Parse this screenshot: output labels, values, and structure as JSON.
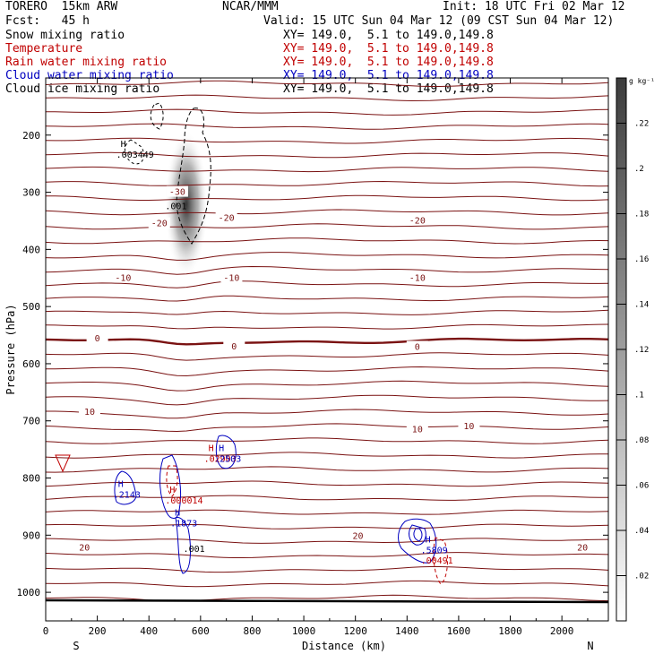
{
  "header": {
    "model": "TORERO  15km ARW",
    "org": "NCAR/MMM",
    "init": "Init: 18 UTC Fri 02 Mar 12",
    "fcst": "Fcst:   45 h",
    "valid": "Valid: 15 UTC Sun 04 Mar 12 (09 CST Sun 04 Mar 12)"
  },
  "fields": [
    {
      "name": "Snow mixing ratio",
      "xy": "XY= 149.0,  5.1 to 149.0,149.8",
      "color": "#000000"
    },
    {
      "name": "Temperature",
      "xy": "XY= 149.0,  5.1 to 149.0,149.8",
      "color": "#c00000"
    },
    {
      "name": "Rain water mixing ratio",
      "xy": "XY= 149.0,  5.1 to 149.0,149.8",
      "color": "#c00000"
    },
    {
      "name": "Cloud water mixing ratio",
      "xy": "XY= 149.0,  5.1 to 149.0,149.8",
      "color": "#0000c0"
    },
    {
      "name": "Cloud ice mixing ratio",
      "xy": "XY= 149.0,  5.1 to 149.0,149.8",
      "color": "#000000"
    }
  ],
  "chart_data": {
    "type": "line",
    "xlabel": "Distance (km)",
    "ylabel": "Pressure (hPa)",
    "xlim": [
      0,
      2180
    ],
    "ylim": [
      1050,
      100
    ],
    "x_ticks": [
      "0",
      "200",
      "400",
      "600",
      "800",
      "1000",
      "1200",
      "1400",
      "1600",
      "1800",
      "2000"
    ],
    "y_ticks": [
      "200",
      "300",
      "400",
      "500",
      "600",
      "700",
      "800",
      "900",
      "1000"
    ],
    "end_labels": [
      "S",
      "N"
    ],
    "colorbar": {
      "unit": "g kg⁻¹",
      "ticks": [
        ".02",
        ".04",
        ".06",
        ".08",
        ".1",
        ".12",
        ".14",
        ".16",
        ".18",
        ".2",
        ".22"
      ],
      "range": [
        0,
        0.24
      ]
    },
    "isotherm_labels": [
      {
        "text": "-30",
        "x": 510,
        "p": 300
      },
      {
        "text": "-20",
        "x": 440,
        "p": 355
      },
      {
        "text": "-20",
        "x": 700,
        "p": 345
      },
      {
        "text": "-20",
        "x": 1440,
        "p": 350
      },
      {
        "text": "-10",
        "x": 300,
        "p": 450
      },
      {
        "text": "-10",
        "x": 720,
        "p": 450
      },
      {
        "text": "-10",
        "x": 1440,
        "p": 450
      },
      {
        "text": "0",
        "x": 200,
        "p": 556
      },
      {
        "text": "0",
        "x": 730,
        "p": 570
      },
      {
        "text": "0",
        "x": 1440,
        "p": 571
      },
      {
        "text": "10",
        "x": 170,
        "p": 685
      },
      {
        "text": "10",
        "x": 1440,
        "p": 715
      },
      {
        "text": "10",
        "x": 1640,
        "p": 710
      },
      {
        "text": "20",
        "x": 150,
        "p": 922
      },
      {
        "text": "20",
        "x": 1210,
        "p": 902
      },
      {
        "text": "20",
        "x": 2080,
        "p": 922
      }
    ],
    "extrema_labels": [
      {
        "mark": "H",
        "value": ".003449",
        "x": 280,
        "p": 230,
        "color": "#000000"
      },
      {
        "mark": "",
        "value": ".001",
        "x": 470,
        "p": 320,
        "color": "#000000"
      },
      {
        "mark": "H",
        "value": ".2143",
        "x": 270,
        "p": 825,
        "color": "#0000c0"
      },
      {
        "mark": "H",
        "value": ".000014",
        "x": 470,
        "p": 835,
        "color": "#c00000"
      },
      {
        "mark": "H",
        "value": ".1873",
        "x": 490,
        "p": 875,
        "color": "#0000c0"
      },
      {
        "mark": "",
        "value": ".001",
        "x": 540,
        "p": 920,
        "color": "#000000"
      },
      {
        "mark": "H",
        "value": ".02903",
        "x": 620,
        "p": 762,
        "color": "#c00000"
      },
      {
        "mark": "H",
        "value": ".2503",
        "x": 660,
        "p": 762,
        "color": "#0000c0"
      },
      {
        "mark": "H",
        "value": ".5809",
        "x": 1460,
        "p": 922,
        "color": "#0000c0"
      },
      {
        "mark": "",
        "value": ".00491",
        "x": 1460,
        "p": 940,
        "color": "#c00000"
      }
    ]
  }
}
